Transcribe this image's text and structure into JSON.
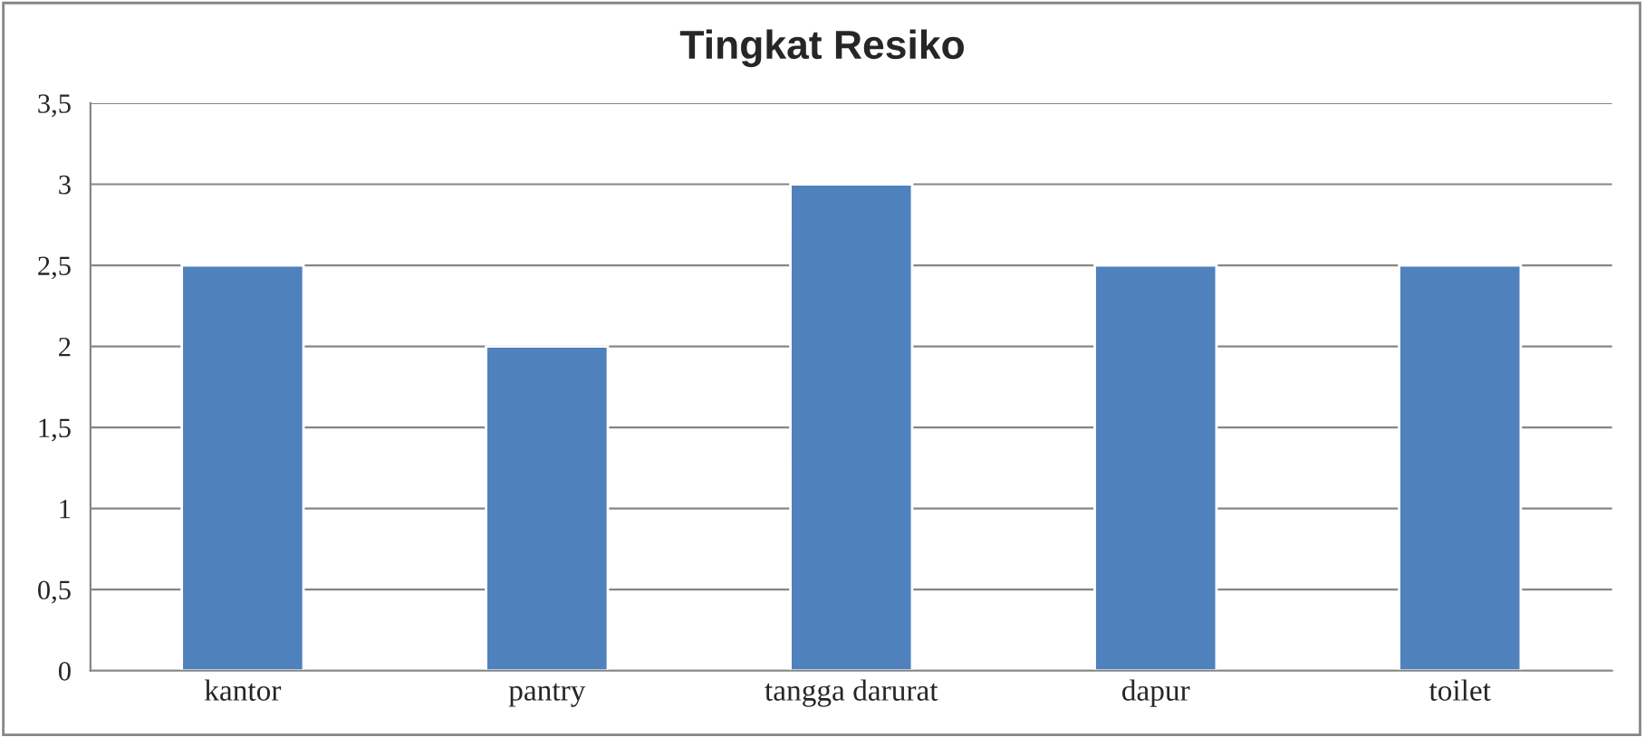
{
  "chart_data": {
    "type": "bar",
    "title": "Tingkat Resiko",
    "categories": [
      "kantor",
      "pantry",
      "tangga darurat",
      "dapur",
      "toilet"
    ],
    "values": [
      2.5,
      2,
      3,
      2.5,
      2.5
    ],
    "color": "#4f81bd",
    "ylim": [
      0,
      3.5
    ],
    "yticks": [
      {
        "value": 0,
        "label": "0"
      },
      {
        "value": 0.5,
        "label": "0,5"
      },
      {
        "value": 1,
        "label": "1"
      },
      {
        "value": 1.5,
        "label": "1,5"
      },
      {
        "value": 2,
        "label": "2"
      },
      {
        "value": 2.5,
        "label": "2,5"
      },
      {
        "value": 3,
        "label": "3"
      },
      {
        "value": 3.5,
        "label": "3,5"
      }
    ],
    "grid": "y"
  }
}
